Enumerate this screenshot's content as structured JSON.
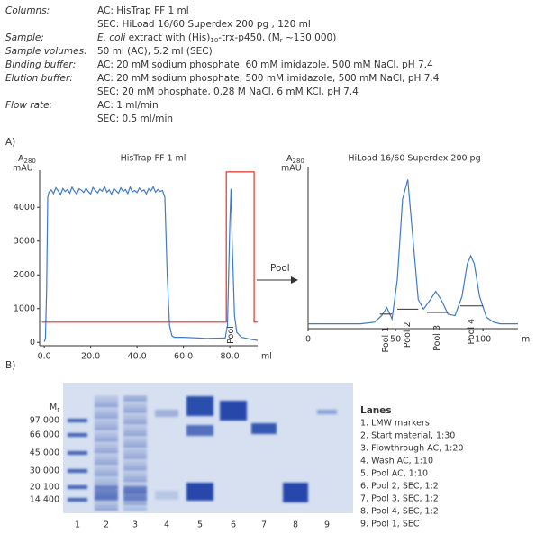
{
  "conditions": [
    {
      "label": "Columns:",
      "lines": [
        "AC:  HisTrap FF 1 ml",
        "SEC: HiLoad 16/60 Superdex 200 pg , 120 ml"
      ]
    },
    {
      "label": "Sample:",
      "lines": [
        {
          "parts": [
            "E. coli",
            " extract with (His)",
            "10",
            "-trx-p450, (M",
            "r",
            " ~130 000)"
          ]
        }
      ]
    },
    {
      "label": "Sample volumes:",
      "lines": [
        "50 ml (AC), 5.2 ml (SEC)"
      ]
    },
    {
      "label": "Binding buffer:",
      "lines": [
        "AC:  20 mM sodium phosphate, 60 mM imidazole, 500 mM NaCl, pH 7.4"
      ]
    },
    {
      "label": "Elution buffer:",
      "lines": [
        "AC:  20 mM sodium phosphate, 500 mM imidazole, 500 mM NaCl, pH 7.4",
        "SEC: 20 mM phosphate, 0.28 M NaCl, 6 mM KCl, pH 7.4"
      ]
    },
    {
      "label": "Flow rate:",
      "lines": [
        "AC:  1 ml/min",
        "SEC: 0.5 ml/min"
      ]
    }
  ],
  "panel_a": {
    "label": "A)",
    "arrow_label": "Pool"
  },
  "chart_data": [
    {
      "type": "line",
      "title": "HisTrap FF 1 ml",
      "y_label": {
        "symbol": "A",
        "subscript": "280",
        "unit": "mAU"
      },
      "x_label": "ml",
      "xlim": [
        -2,
        92
      ],
      "ylim": [
        -100,
        5100
      ],
      "xticks": [
        {
          "value": 0,
          "label": "0.0"
        },
        {
          "value": 20,
          "label": "20.0"
        },
        {
          "value": 40,
          "label": "40.0"
        },
        {
          "value": 60,
          "label": "60.0"
        },
        {
          "value": 80,
          "label": "80.0"
        }
      ],
      "yticks": [
        0,
        1000,
        2000,
        3000,
        4000
      ],
      "annotation": {
        "text": "Pool",
        "x": 80.5
      },
      "series": [
        {
          "color": "#3f7cc8",
          "x": [
            0,
            0.5,
            1,
            1.5,
            2,
            3,
            4,
            5,
            6,
            7,
            8,
            9,
            10,
            11,
            12,
            13,
            14,
            15,
            16,
            17,
            18,
            19,
            20,
            21,
            22,
            23,
            24,
            25,
            26,
            27,
            28,
            29,
            30,
            31,
            32,
            33,
            34,
            35,
            36,
            37,
            38,
            39,
            40,
            41,
            42,
            43,
            44,
            45,
            46,
            47,
            48,
            49,
            50,
            51,
            52,
            53,
            54,
            55,
            56,
            60,
            70,
            78,
            79,
            80,
            80.5,
            81,
            82,
            83,
            85,
            90,
            92
          ],
          "values": [
            20,
            100,
            1500,
            4300,
            4450,
            4520,
            4410,
            4580,
            4490,
            4380,
            4560,
            4470,
            4530,
            4420,
            4600,
            4480,
            4390,
            4550,
            4510,
            4440,
            4570,
            4460,
            4400,
            4590,
            4500,
            4430,
            4540,
            4480,
            4610,
            4450,
            4520,
            4390,
            4560,
            4490,
            4420,
            4580,
            4470,
            4530,
            4410,
            4600,
            4460,
            4500,
            4440,
            4570,
            4480,
            4520,
            4400,
            4550,
            4490,
            4610,
            4450,
            4530,
            4470,
            4500,
            4300,
            2000,
            500,
            200,
            150,
            150,
            120,
            130,
            500,
            3500,
            4550,
            3000,
            800,
            300,
            150,
            80,
            60
          ]
        },
        {
          "color": "#e0322c",
          "x": [
            -1,
            78.5,
            78.5,
            90.5,
            90.5,
            92
          ],
          "values": [
            600,
            600,
            5050,
            5050,
            600,
            600
          ]
        }
      ]
    },
    {
      "type": "line",
      "title": "HiLoad 16/60 Superdex 200 pg",
      "y_label": {
        "symbol": "A",
        "subscript": "280",
        "unit": "mAU"
      },
      "x_label": "ml",
      "xlim": [
        0,
        120
      ],
      "ylim": [
        0,
        100
      ],
      "xticks": [
        0,
        50,
        100
      ],
      "pools": [
        {
          "label": "Pool 1",
          "x": [
            41,
            48
          ],
          "y": 9
        },
        {
          "label": "Pool 2",
          "x": [
            51,
            63
          ],
          "y": 12
        },
        {
          "label": "Pool 3",
          "x": [
            68,
            80
          ],
          "y": 10
        },
        {
          "label": "Pool 4",
          "x": [
            87,
            100
          ],
          "y": 14
        }
      ],
      "series": [
        {
          "color": "#3f7cc8",
          "x": [
            0,
            10,
            20,
            30,
            38,
            42,
            45,
            48,
            51,
            54,
            57,
            60,
            63,
            66,
            70,
            73,
            76,
            80,
            84,
            88,
            91,
            93,
            95,
            98,
            102,
            106,
            110,
            120
          ],
          "values": [
            3,
            3,
            3,
            3,
            4,
            8,
            13,
            6,
            30,
            80,
            92,
            55,
            18,
            12,
            18,
            23,
            18,
            9,
            8,
            20,
            40,
            45,
            40,
            20,
            7,
            4,
            3,
            3
          ]
        }
      ]
    }
  ],
  "panel_b": {
    "label": "B)",
    "mr": {
      "symbol": "M",
      "subscript": "r"
    },
    "markers": [
      "97 000",
      "66 000",
      "45 000",
      "30 000",
      "20 100",
      "14 400"
    ],
    "lanes": [
      "1",
      "2",
      "3",
      "4",
      "5",
      "6",
      "7",
      "8",
      "9"
    ],
    "legend": {
      "title": "Lanes",
      "items": [
        "1. LMW markers",
        "2. Start material, 1:30",
        "3. Flowthrough AC, 1:20",
        "4. Wash AC, 1:10",
        "5. Pool AC, 1:10",
        "6. Pool 2, SEC, 1:2",
        "7. Pool 3, SEC, 1:2",
        "8. Pool 4, SEC, 1:2",
        "9. Pool 1, SEC"
      ]
    }
  }
}
